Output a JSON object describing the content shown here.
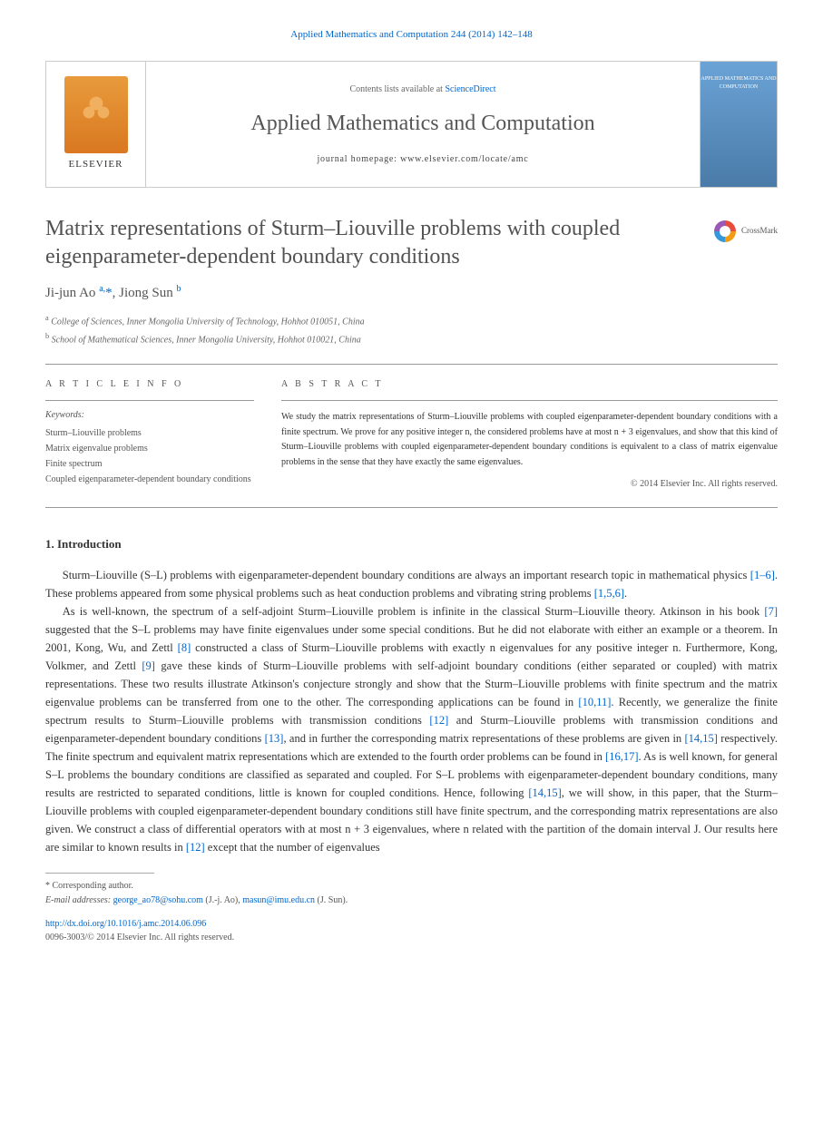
{
  "citation": "Applied Mathematics and Computation 244 (2014) 142–148",
  "header": {
    "contents_prefix": "Contents lists available at ",
    "contents_link": "ScienceDirect",
    "journal_name": "Applied Mathematics and Computation",
    "homepage_prefix": "journal homepage: ",
    "homepage_url": "www.elsevier.com/locate/amc",
    "publisher": "ELSEVIER",
    "cover_text": "APPLIED MATHEMATICS AND COMPUTATION"
  },
  "crossmark_label": "CrossMark",
  "title": "Matrix representations of Sturm–Liouville problems with coupled eigenparameter-dependent boundary conditions",
  "authors_html": "Ji-jun Ao <sup>a,</sup><span class='corr'>*</span>, Jiong Sun <sup>b</sup>",
  "affiliations": [
    {
      "sup": "a",
      "text": "College of Sciences, Inner Mongolia University of Technology, Hohhot 010051, China"
    },
    {
      "sup": "b",
      "text": "School of Mathematical Sciences, Inner Mongolia University, Hohhot 010021, China"
    }
  ],
  "info_heading": "A R T I C L E   I N F O",
  "abstract_heading": "A B S T R A C T",
  "keywords_label": "Keywords:",
  "keywords": [
    "Sturm–Liouville problems",
    "Matrix eigenvalue problems",
    "Finite spectrum",
    "Coupled eigenparameter-dependent boundary conditions"
  ],
  "abstract": "We study the matrix representations of Sturm–Liouville problems with coupled eigenparameter-dependent boundary conditions with a finite spectrum. We prove for any positive integer n, the considered problems have at most n + 3 eigenvalues, and show that this kind of Sturm–Liouville problems with coupled eigenparameter-dependent boundary conditions is equivalent to a class of matrix eigenvalue problems in the sense that they have exactly the same eigenvalues.",
  "copyright": "© 2014 Elsevier Inc. All rights reserved.",
  "section1_heading": "1. Introduction",
  "para1": "Sturm–Liouville (S–L) problems with eigenparameter-dependent boundary conditions are always an important research topic in mathematical physics [1–6]. These problems appeared from some physical problems such as heat conduction problems and vibrating string problems [1,5,6].",
  "para2": "As is well-known, the spectrum of a self-adjoint Sturm–Liouville problem is infinite in the classical Sturm–Liouville theory. Atkinson in his book [7] suggested that the S–L problems may have finite eigenvalues under some special conditions. But he did not elaborate with either an example or a theorem. In 2001, Kong, Wu, and Zettl [8] constructed a class of Sturm–Liouville problems with exactly n eigenvalues for any positive integer n. Furthermore, Kong, Volkmer, and Zettl [9] gave these kinds of Sturm–Liouville problems with self-adjoint boundary conditions (either separated or coupled) with matrix representations. These two results illustrate Atkinson's conjecture strongly and show that the Sturm–Liouville problems with finite spectrum and the matrix eigenvalue problems can be transferred from one to the other. The corresponding applications can be found in [10,11]. Recently, we generalize the finite spectrum results to Sturm–Liouville problems with transmission conditions [12] and Sturm–Liouville problems with transmission conditions and eigenparameter-dependent boundary conditions [13], and in further the corresponding matrix representations of these problems are given in [14,15] respectively. The finite spectrum and equivalent matrix representations which are extended to the fourth order problems can be found in [16,17]. As is well known, for general S–L problems the boundary conditions are classified as separated and coupled. For S–L problems with eigenparameter-dependent boundary conditions, many results are restricted to separated conditions, little is known for coupled conditions. Hence, following [14,15], we will show, in this paper, that the Sturm–Liouville problems with coupled eigenparameter-dependent boundary conditions still have finite spectrum, and the corresponding matrix representations are also given. We construct a class of differential operators with at most n + 3 eigenvalues, where n related with the partition of the domain interval J. Our results here are similar to known results in [12] except that the number of eigenvalues",
  "footnote_marker": "* Corresponding author.",
  "footnote_emails_label": "E-mail addresses: ",
  "footnote_emails": [
    {
      "email": "george_ao78@sohu.com",
      "who": "(J.-j. Ao)"
    },
    {
      "email": "masun@imu.edu.cn",
      "who": "(J. Sun)"
    }
  ],
  "doi": "http://dx.doi.org/10.1016/j.amc.2014.06.096",
  "issn": "0096-3003/© 2014 Elsevier Inc. All rights reserved.",
  "refs_in_p1": {
    "r1": "[1–6]",
    "r2": "[1,5,6]"
  },
  "refs_in_p2": {
    "r7": "[7]",
    "r8": "[8]",
    "r9": "[9]",
    "r1011": "[10,11]",
    "r12": "[12]",
    "r13": "[13]",
    "r1415": "[14,15]",
    "r1617": "[16,17]",
    "r1415b": "[14,15]",
    "r12b": "[12]"
  }
}
